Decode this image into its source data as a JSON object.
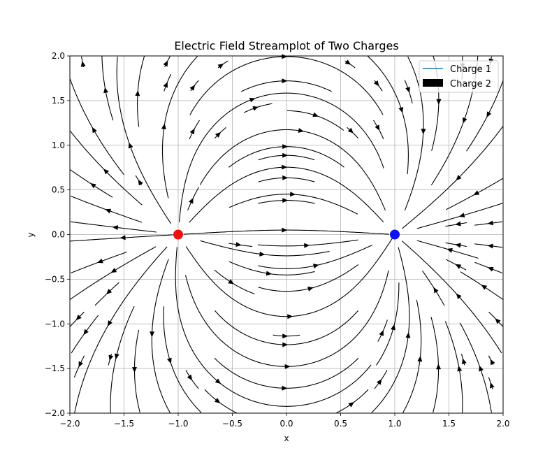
{
  "chart_data": {
    "type": "streamplot",
    "title": "Electric Field Streamplot of Two Charges",
    "xlabel": "x",
    "ylabel": "y",
    "xlim": [
      -2.0,
      2.0
    ],
    "ylim": [
      -2.0,
      2.0
    ],
    "x_ticks": [
      "−2.0",
      "−1.5",
      "−1.0",
      "−0.5",
      "0.0",
      "0.5",
      "1.0",
      "1.5",
      "2.0"
    ],
    "y_ticks": [
      "−2.0",
      "−1.5",
      "−1.0",
      "−0.5",
      "0.0",
      "0.5",
      "1.0",
      "1.5",
      "2.0"
    ],
    "x_tick_values": [
      -2.0,
      -1.5,
      -1.0,
      -0.5,
      0.0,
      0.5,
      1.0,
      1.5,
      2.0
    ],
    "y_tick_values": [
      -2.0,
      -1.5,
      -1.0,
      -0.5,
      0.0,
      0.5,
      1.0,
      1.5,
      2.0
    ],
    "grid": true,
    "legend_position": "top-right",
    "charges": [
      {
        "x": -1.0,
        "y": 0.0,
        "sign": "positive",
        "color": "#ee1111"
      },
      {
        "x": 1.0,
        "y": 0.0,
        "sign": "negative",
        "color": "#1111ee"
      }
    ],
    "legend": [
      {
        "label": "Charge 1",
        "style": "line",
        "color": "#1f77b4"
      },
      {
        "label": "Charge 2",
        "style": "patch",
        "color": "#000000"
      }
    ],
    "streamline_color": "#000000"
  }
}
